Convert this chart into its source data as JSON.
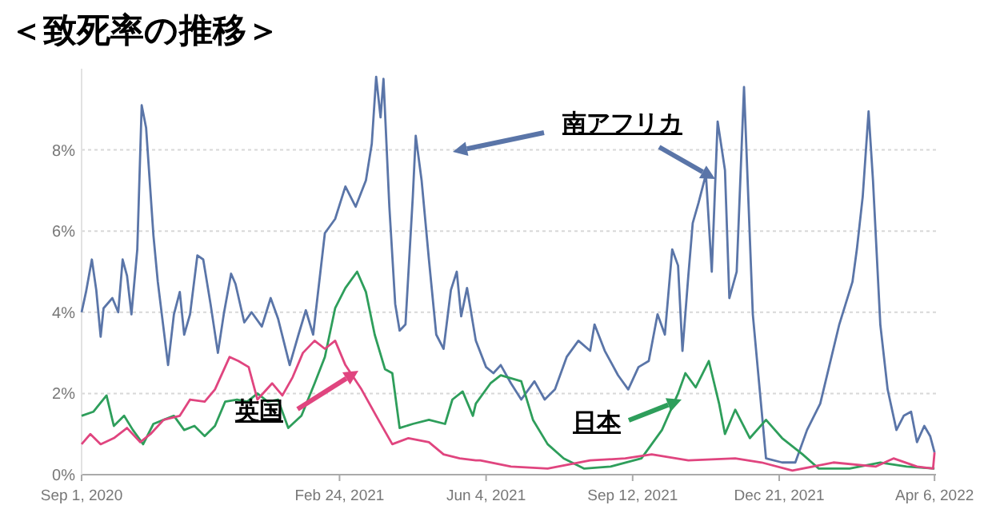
{
  "chart_data": {
    "type": "line",
    "title": "＜致死率の推移＞",
    "xlim": [
      "2020-09-01",
      "2022-04-07"
    ],
    "ylim": [
      0,
      10
    ],
    "xticks": [
      {
        "value": "2020-09-01",
        "label": "Sep 1, 2020"
      },
      {
        "value": "2021-02-24",
        "label": "Feb 24, 2021"
      },
      {
        "value": "2021-06-04",
        "label": "Jun 4, 2021"
      },
      {
        "value": "2021-09-12",
        "label": "Sep 12, 2021"
      },
      {
        "value": "2021-12-21",
        "label": "Dec 21, 2021"
      },
      {
        "value": "2022-04-06",
        "label": "Apr 6, 2022"
      }
    ],
    "yticks": [
      {
        "value": 0,
        "label": "0%"
      },
      {
        "value": 2,
        "label": "2%"
      },
      {
        "value": 4,
        "label": "4%"
      },
      {
        "value": 6,
        "label": "6%"
      },
      {
        "value": 8,
        "label": "8%"
      }
    ],
    "grid": "y",
    "marker": "none",
    "line_style": "solid",
    "series": [
      {
        "name": "南アフリカ",
        "color": "#5a75a8",
        "x": [
          "2020-09-01",
          "2020-09-04",
          "2020-09-08",
          "2020-09-11",
          "2020-09-14",
          "2020-09-16",
          "2020-09-22",
          "2020-09-26",
          "2020-09-29",
          "2020-10-02",
          "2020-10-05",
          "2020-10-09",
          "2020-10-12",
          "2020-10-15",
          "2020-10-20",
          "2020-10-23",
          "2020-10-30",
          "2020-11-03",
          "2020-11-07",
          "2020-11-10",
          "2020-11-14",
          "2020-11-19",
          "2020-11-23",
          "2020-11-28",
          "2020-12-03",
          "2020-12-07",
          "2020-12-12",
          "2020-12-15",
          "2020-12-21",
          "2020-12-26",
          "2021-01-02",
          "2021-01-08",
          "2021-01-13",
          "2021-01-21",
          "2021-01-27",
          "2021-02-01",
          "2021-02-06",
          "2021-02-14",
          "2021-02-21",
          "2021-02-28",
          "2021-03-07",
          "2021-03-14",
          "2021-03-18",
          "2021-03-21",
          "2021-03-24",
          "2021-03-26",
          "2021-03-30",
          "2021-04-03",
          "2021-04-06",
          "2021-04-10",
          "2021-04-15",
          "2021-04-17",
          "2021-04-21",
          "2021-04-26",
          "2021-05-01",
          "2021-05-06",
          "2021-05-11",
          "2021-05-15",
          "2021-05-18",
          "2021-05-22",
          "2021-05-28",
          "2021-06-04",
          "2021-06-09",
          "2021-06-14",
          "2021-06-21",
          "2021-06-28",
          "2021-07-07",
          "2021-07-14",
          "2021-07-21",
          "2021-07-29",
          "2021-08-06",
          "2021-08-14",
          "2021-08-17",
          "2021-08-24",
          "2021-09-02",
          "2021-09-09",
          "2021-09-16",
          "2021-09-23",
          "2021-09-29",
          "2021-10-04",
          "2021-10-09",
          "2021-10-13",
          "2021-10-16",
          "2021-10-20",
          "2021-10-23",
          "2021-10-27",
          "2021-11-01",
          "2021-11-05",
          "2021-11-09",
          "2021-11-14",
          "2021-11-17",
          "2021-11-22",
          "2021-11-27",
          "2021-12-03",
          "2021-12-12",
          "2021-12-23",
          "2022-01-01",
          "2022-01-09",
          "2022-01-18",
          "2022-01-24",
          "2022-01-31",
          "2022-02-09",
          "2022-02-12",
          "2022-02-16",
          "2022-02-20",
          "2022-02-23",
          "2022-02-28",
          "2022-03-05",
          "2022-03-11",
          "2022-03-16",
          "2022-03-21",
          "2022-03-25",
          "2022-03-30",
          "2022-04-03",
          "2022-04-06"
        ],
        "values": [
          4.0,
          4.5,
          5.3,
          4.55,
          3.4,
          4.1,
          4.35,
          4.0,
          5.3,
          4.9,
          3.95,
          5.55,
          9.1,
          8.55,
          5.9,
          4.75,
          2.7,
          3.95,
          4.5,
          3.45,
          3.95,
          5.4,
          5.3,
          4.2,
          3.0,
          3.95,
          4.95,
          4.7,
          3.75,
          4.0,
          3.65,
          4.35,
          3.85,
          2.7,
          3.45,
          4.05,
          3.45,
          5.95,
          6.3,
          7.1,
          6.6,
          7.25,
          8.15,
          9.8,
          8.8,
          9.75,
          6.6,
          4.2,
          3.55,
          3.7,
          6.85,
          8.35,
          7.25,
          5.3,
          3.45,
          3.1,
          4.55,
          5.0,
          3.9,
          4.6,
          3.3,
          2.65,
          2.5,
          2.7,
          2.25,
          1.85,
          2.3,
          1.85,
          2.1,
          2.9,
          3.3,
          3.05,
          3.7,
          3.05,
          2.45,
          2.1,
          2.65,
          2.8,
          3.95,
          3.45,
          5.55,
          5.15,
          3.05,
          4.9,
          6.2,
          6.7,
          7.4,
          5.0,
          8.7,
          7.5,
          4.35,
          5.0,
          9.55,
          3.95,
          0.4,
          0.3,
          0.3,
          1.1,
          1.75,
          2.65,
          3.7,
          4.75,
          5.55,
          6.85,
          8.95,
          7.25,
          3.7,
          2.1,
          1.1,
          1.45,
          1.55,
          0.8,
          1.2,
          0.95,
          0.55
        ]
      },
      {
        "name": "日本",
        "color": "#2e9e5b",
        "x": [
          "2020-09-01",
          "2020-09-09",
          "2020-09-18",
          "2020-09-23",
          "2020-09-30",
          "2020-10-06",
          "2020-10-13",
          "2020-10-20",
          "2020-10-27",
          "2020-11-03",
          "2020-11-10",
          "2020-11-17",
          "2020-11-24",
          "2020-12-01",
          "2020-12-08",
          "2020-12-16",
          "2020-12-23",
          "2020-12-30",
          "2021-01-06",
          "2021-01-13",
          "2021-01-20",
          "2021-01-29",
          "2021-02-07",
          "2021-02-14",
          "2021-02-21",
          "2021-02-28",
          "2021-03-08",
          "2021-03-14",
          "2021-03-20",
          "2021-03-27",
          "2021-04-01",
          "2021-04-06",
          "2021-04-15",
          "2021-04-26",
          "2021-05-07",
          "2021-05-12",
          "2021-05-19",
          "2021-05-26",
          "2021-05-28",
          "2021-06-07",
          "2021-06-14",
          "2021-06-28",
          "2021-07-06",
          "2021-07-16",
          "2021-07-27",
          "2021-08-10",
          "2021-08-28",
          "2021-09-18",
          "2021-10-02",
          "2021-10-13",
          "2021-10-18",
          "2021-10-25",
          "2021-11-03",
          "2021-11-10",
          "2021-11-14",
          "2021-11-21",
          "2021-12-01",
          "2021-12-12",
          "2021-12-23",
          "2022-01-06",
          "2022-01-17",
          "2022-02-07",
          "2022-02-28",
          "2022-03-18",
          "2022-04-06"
        ],
        "values": [
          1.45,
          1.55,
          1.95,
          1.2,
          1.45,
          1.1,
          0.75,
          1.25,
          1.35,
          1.45,
          1.1,
          1.2,
          0.95,
          1.2,
          1.8,
          1.85,
          1.8,
          2.0,
          1.8,
          1.85,
          1.15,
          1.45,
          2.25,
          2.9,
          4.1,
          4.6,
          5.0,
          4.5,
          3.45,
          2.6,
          2.5,
          1.15,
          1.25,
          1.35,
          1.25,
          1.85,
          2.05,
          1.45,
          1.75,
          2.25,
          2.45,
          2.3,
          1.35,
          0.75,
          0.4,
          0.15,
          0.2,
          0.4,
          1.1,
          2.0,
          2.5,
          2.15,
          2.8,
          1.75,
          1.0,
          1.6,
          0.9,
          1.35,
          0.9,
          0.5,
          0.15,
          0.15,
          0.3,
          0.2,
          0.15
        ]
      },
      {
        "name": "英国",
        "color": "#e0457f",
        "x": [
          "2020-09-01",
          "2020-09-07",
          "2020-09-14",
          "2020-09-23",
          "2020-10-02",
          "2020-10-11",
          "2020-10-18",
          "2020-10-27",
          "2020-11-07",
          "2020-11-14",
          "2020-11-24",
          "2020-12-01",
          "2020-12-11",
          "2020-12-17",
          "2020-12-24",
          "2020-12-30",
          "2021-01-09",
          "2021-01-16",
          "2021-01-23",
          "2021-01-30",
          "2021-02-07",
          "2021-02-14",
          "2021-02-21",
          "2021-02-28",
          "2021-03-11",
          "2021-03-21",
          "2021-04-01",
          "2021-04-12",
          "2021-04-26",
          "2021-05-06",
          "2021-05-17",
          "2021-05-28",
          "2021-05-31",
          "2021-06-21",
          "2021-07-16",
          "2021-08-14",
          "2021-09-07",
          "2021-09-25",
          "2021-10-20",
          "2021-11-21",
          "2021-12-09",
          "2021-12-30",
          "2022-01-27",
          "2022-02-25",
          "2022-03-09",
          "2022-03-25",
          "2022-04-05",
          "2022-04-06"
        ],
        "values": [
          0.75,
          1.0,
          0.75,
          0.9,
          1.15,
          0.8,
          1.0,
          1.35,
          1.45,
          1.85,
          1.8,
          2.1,
          2.9,
          2.8,
          2.65,
          1.85,
          2.25,
          1.95,
          2.4,
          3.0,
          3.3,
          3.1,
          3.3,
          2.7,
          2.1,
          1.45,
          0.75,
          0.9,
          0.8,
          0.5,
          0.4,
          0.35,
          0.35,
          0.2,
          0.15,
          0.35,
          0.4,
          0.5,
          0.35,
          0.4,
          0.3,
          0.1,
          0.3,
          0.2,
          0.4,
          0.2,
          0.15,
          0.55
        ]
      }
    ]
  }
}
